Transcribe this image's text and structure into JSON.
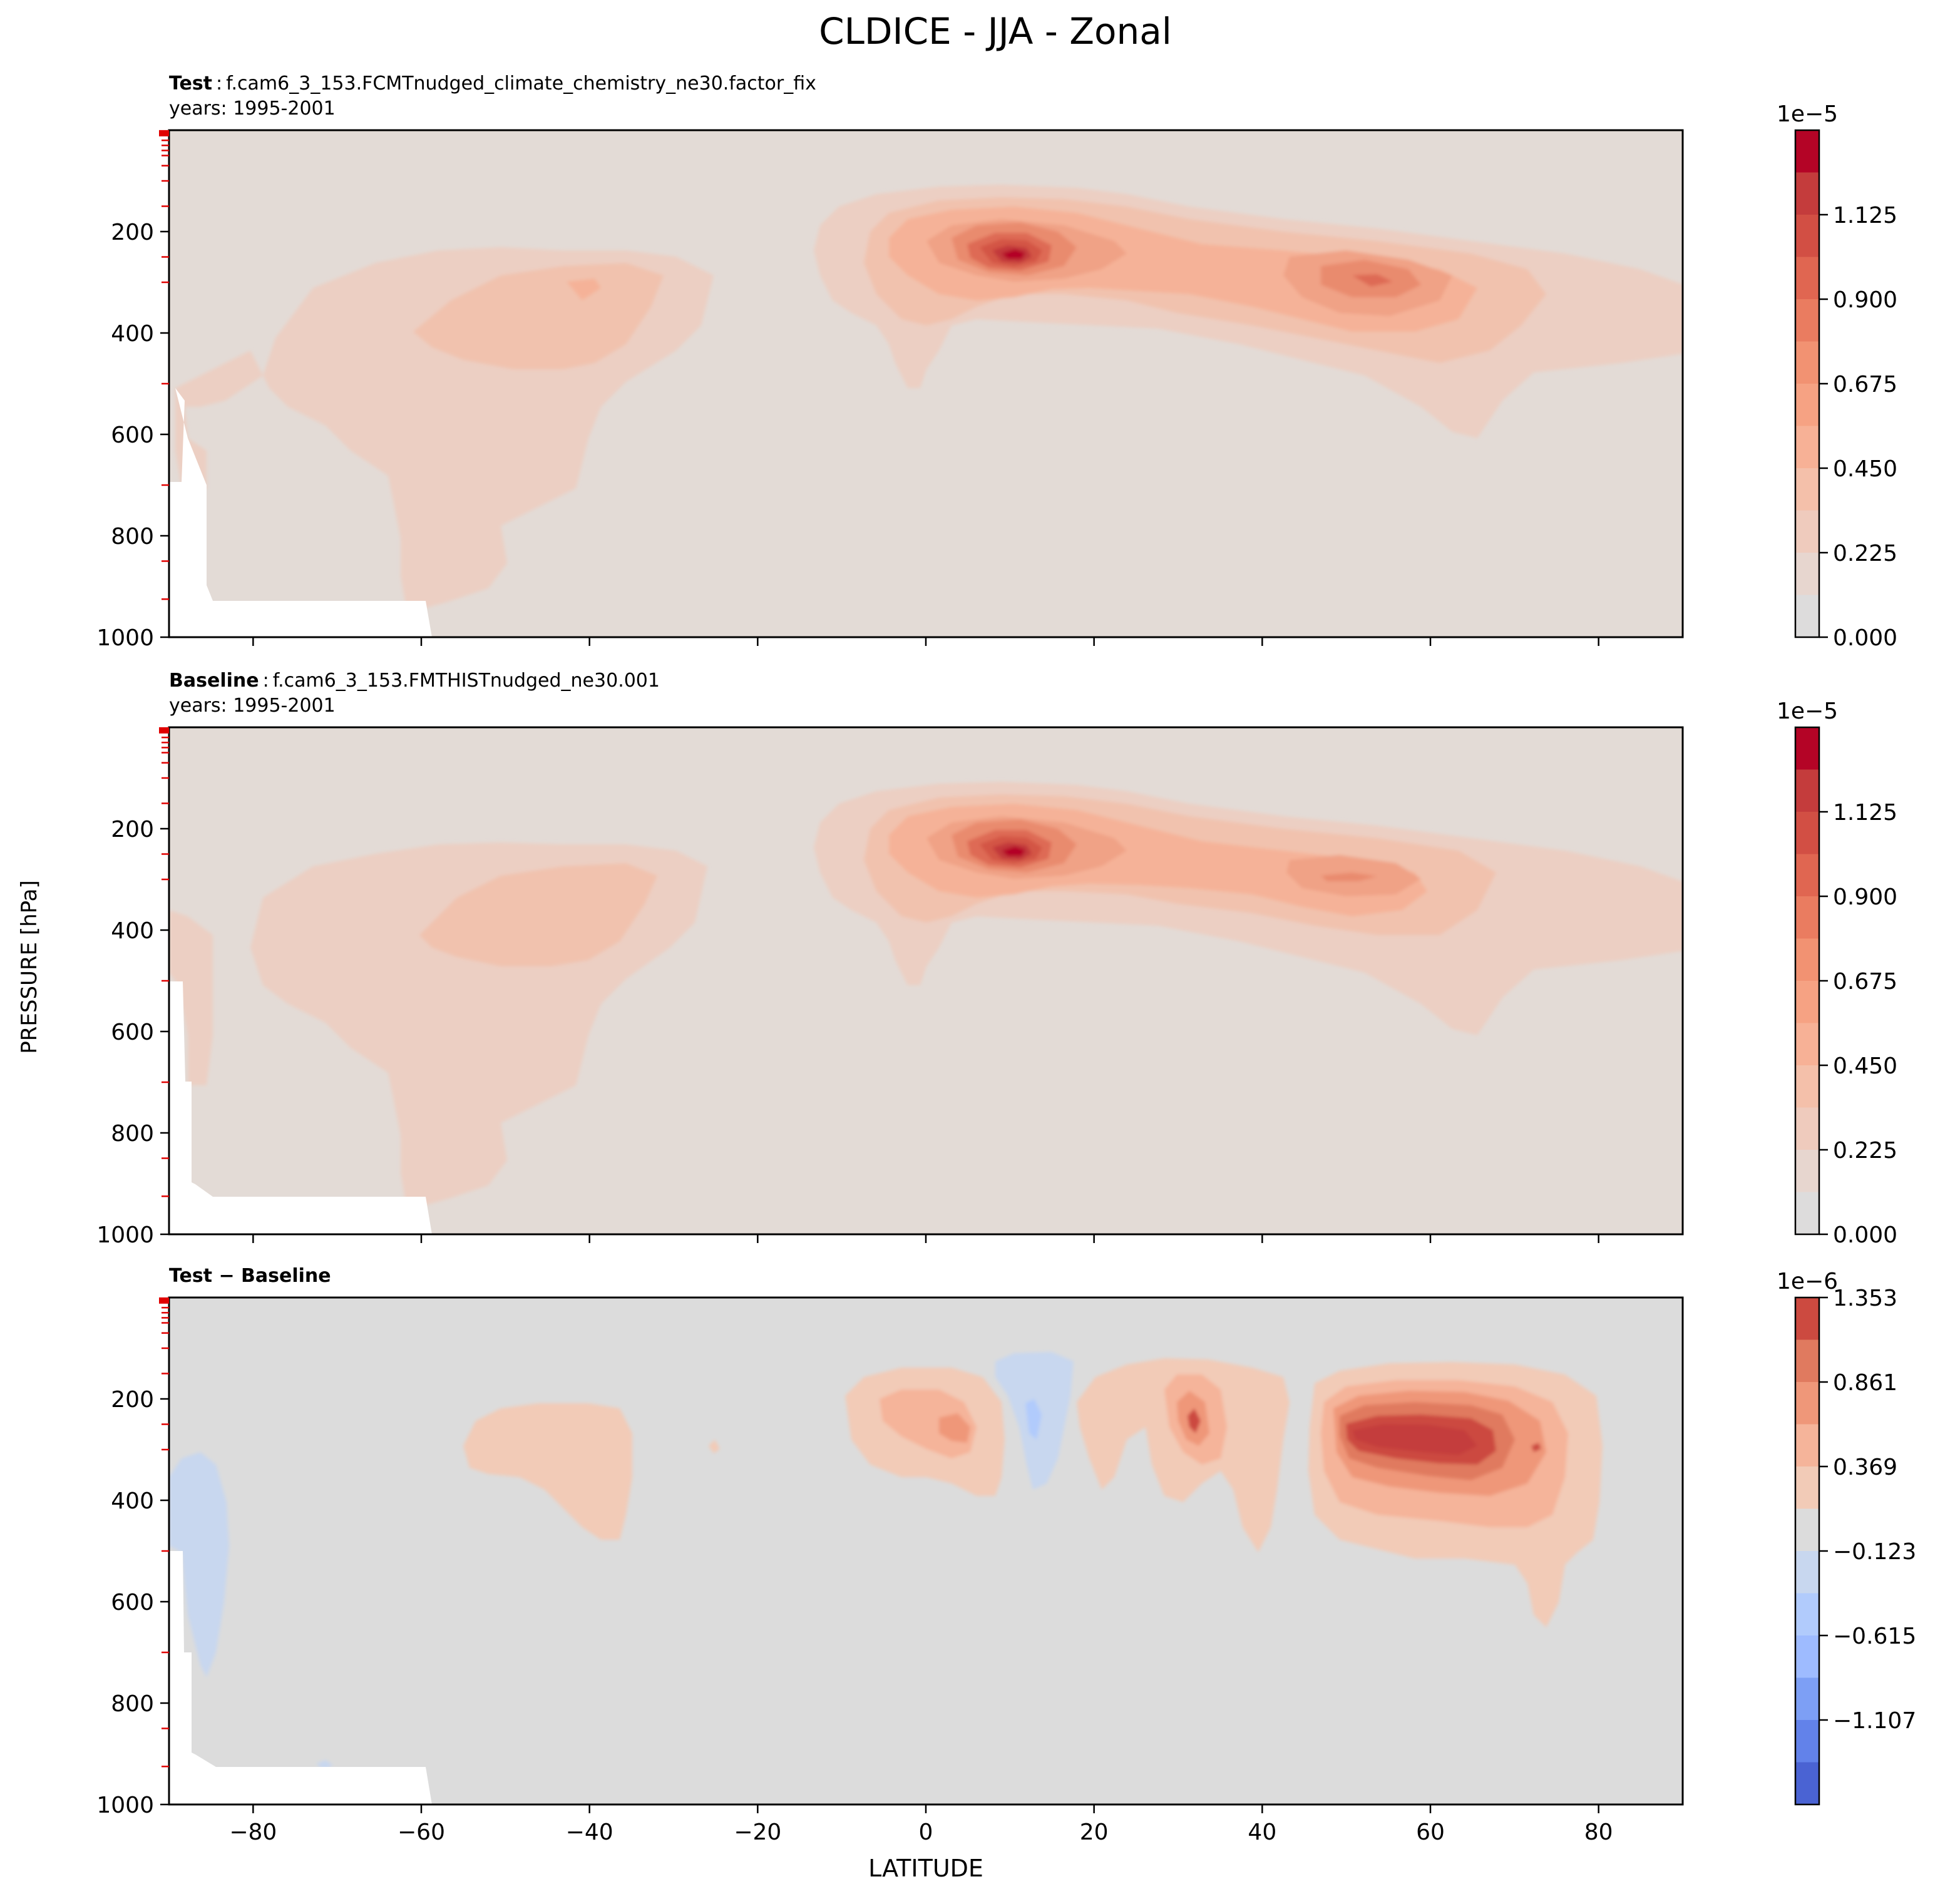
{
  "title": "CLDICE - JJA - Zonal",
  "xlabel": "LATITUDE",
  "ylabel": "PRESSURE [hPa]",
  "chart_data": [
    {
      "type": "contour",
      "panel_label": "Test",
      "case_sep": ":",
      "case_name": "f.cam6_3_153.FCMTnudged_climate_chemistry_ne30.factor_fix",
      "years": "years: 1995-2001",
      "x_range": [
        -90,
        90
      ],
      "y_range": [
        1000,
        0
      ],
      "x_ticks": [
        -80,
        -60,
        -40,
        -20,
        0,
        20,
        40,
        60,
        80
      ],
      "x_tick_labels": [
        "−80",
        "−60",
        "−40",
        "−20",
        "0",
        "20",
        "40",
        "60",
        "80"
      ],
      "y_ticks": [
        200,
        400,
        600,
        800,
        1000
      ],
      "y_tick_labels": [
        "200",
        "400",
        "600",
        "800",
        "1000"
      ],
      "colormap": "coolwarm",
      "colorbar": {
        "exponent_label": "1e−5",
        "range": [
          0.0,
          1.35
        ],
        "levels": [
          0.0,
          0.1125,
          0.225,
          0.3375,
          0.45,
          0.5625,
          0.675,
          0.7875,
          0.9,
          1.0125,
          1.125,
          1.2375,
          1.35
        ],
        "colors": [
          "#dddcdc",
          "#e7d6cf",
          "#efcbbd",
          "#f4c0aa",
          "#f7b196",
          "#f6a283",
          "#f29272",
          "#ea7c60",
          "#e06651",
          "#d24f44",
          "#c43c3c",
          "#b40426"
        ],
        "tick_values": [
          0.0,
          0.225,
          0.45,
          0.675,
          0.9,
          1.125
        ],
        "tick_labels": [
          "0.000",
          "0.225",
          "0.450",
          "0.675",
          "0.900",
          "1.125"
        ]
      },
      "features": [
        {
          "label": "upper-tropospheric maximum",
          "lat_center": 10,
          "p_center": 250,
          "peak": 1.3
        },
        {
          "label": "northern mid-latitude band",
          "lat_center": 50,
          "p_center": 300,
          "peak": 0.8
        },
        {
          "label": "southern mid-latitude band",
          "lat_center": -45,
          "p_center": 350,
          "peak": 0.4
        }
      ]
    },
    {
      "type": "contour",
      "panel_label": "Baseline",
      "case_sep": ":",
      "case_name": "f.cam6_3_153.FMTHISTnudged_ne30.001",
      "years": "years: 1995-2001",
      "x_range": [
        -90,
        90
      ],
      "y_range": [
        1000,
        0
      ],
      "x_ticks": [
        -80,
        -60,
        -40,
        -20,
        0,
        20,
        40,
        60,
        80
      ],
      "x_tick_labels": [
        "−80",
        "−60",
        "−40",
        "−20",
        "0",
        "20",
        "40",
        "60",
        "80"
      ],
      "y_ticks": [
        200,
        400,
        600,
        800,
        1000
      ],
      "y_tick_labels": [
        "200",
        "400",
        "600",
        "800",
        "1000"
      ],
      "colormap": "coolwarm",
      "colorbar": {
        "exponent_label": "1e−5",
        "range": [
          0.0,
          1.35
        ],
        "levels": [
          0.0,
          0.1125,
          0.225,
          0.3375,
          0.45,
          0.5625,
          0.675,
          0.7875,
          0.9,
          1.0125,
          1.125,
          1.2375,
          1.35
        ],
        "colors": [
          "#dddcdc",
          "#e7d6cf",
          "#efcbbd",
          "#f4c0aa",
          "#f7b196",
          "#f6a283",
          "#f29272",
          "#ea7c60",
          "#e06651",
          "#d24f44",
          "#c43c3c",
          "#b40426"
        ],
        "tick_values": [
          0.0,
          0.225,
          0.45,
          0.675,
          0.9,
          1.125
        ],
        "tick_labels": [
          "0.000",
          "0.225",
          "0.450",
          "0.675",
          "0.900",
          "1.125"
        ]
      },
      "features": [
        {
          "label": "upper-tropospheric maximum",
          "lat_center": 10,
          "p_center": 250,
          "peak": 1.3
        },
        {
          "label": "northern mid-latitude band",
          "lat_center": 50,
          "p_center": 300,
          "peak": 0.7
        },
        {
          "label": "southern mid-latitude band",
          "lat_center": -45,
          "p_center": 350,
          "peak": 0.35
        }
      ]
    },
    {
      "type": "contour",
      "panel_label": "Test − Baseline",
      "case_sep": "",
      "case_name": "",
      "years": "",
      "x_range": [
        -90,
        90
      ],
      "y_range": [
        1000,
        0
      ],
      "x_ticks": [
        -80,
        -60,
        -40,
        -20,
        0,
        20,
        40,
        60,
        80
      ],
      "x_tick_labels": [
        "−80",
        "−60",
        "−40",
        "−20",
        "0",
        "20",
        "40",
        "60",
        "80"
      ],
      "y_ticks": [
        200,
        400,
        600,
        800,
        1000
      ],
      "y_tick_labels": [
        "200",
        "400",
        "600",
        "800",
        "1000"
      ],
      "colormap": "coolwarm",
      "colorbar": {
        "exponent_label": "1e−6",
        "range": [
          -1.599,
          1.353
        ],
        "levels": [
          -1.599,
          -1.353,
          -1.107,
          -0.861,
          -0.615,
          -0.369,
          -0.123,
          0.123,
          0.369,
          0.615,
          0.861,
          1.107,
          1.353
        ],
        "colors": [
          "#4a63d3",
          "#6282ea",
          "#7d9ff5",
          "#9ebbff",
          "#b1cbfc",
          "#c8d7ef",
          "#dcdcdc",
          "#f2cbb7",
          "#f5b49a",
          "#ef9779",
          "#e07a5f",
          "#cc4a40"
        ],
        "tick_values": [
          -1.107,
          -0.615,
          -0.123,
          0.369,
          0.861,
          1.353
        ],
        "tick_labels": [
          "−1.107",
          "−0.615",
          "−0.123",
          "0.369",
          "0.861",
          "1.353"
        ]
      },
      "features": [
        {
          "label": "northern mid-latitude positive difference",
          "lat_center": 60,
          "p_center": 290,
          "peak": 1.3
        },
        {
          "label": "tropical positive difference",
          "lat_center": 3,
          "p_center": 230,
          "peak": 0.6
        },
        {
          "label": "subtropical positive difference",
          "lat_center": 31,
          "p_center": 230,
          "peak": 1.0
        },
        {
          "label": "tropical negative difference",
          "lat_center": 13,
          "p_center": 220,
          "peak": -0.4
        },
        {
          "label": "southern mid-latitude positive difference",
          "lat_center": -44,
          "p_center": 300,
          "peak": 0.3
        },
        {
          "label": "antarctic low-level negative difference",
          "lat_center": -87,
          "p_center": 500,
          "peak": -0.3
        }
      ]
    }
  ]
}
